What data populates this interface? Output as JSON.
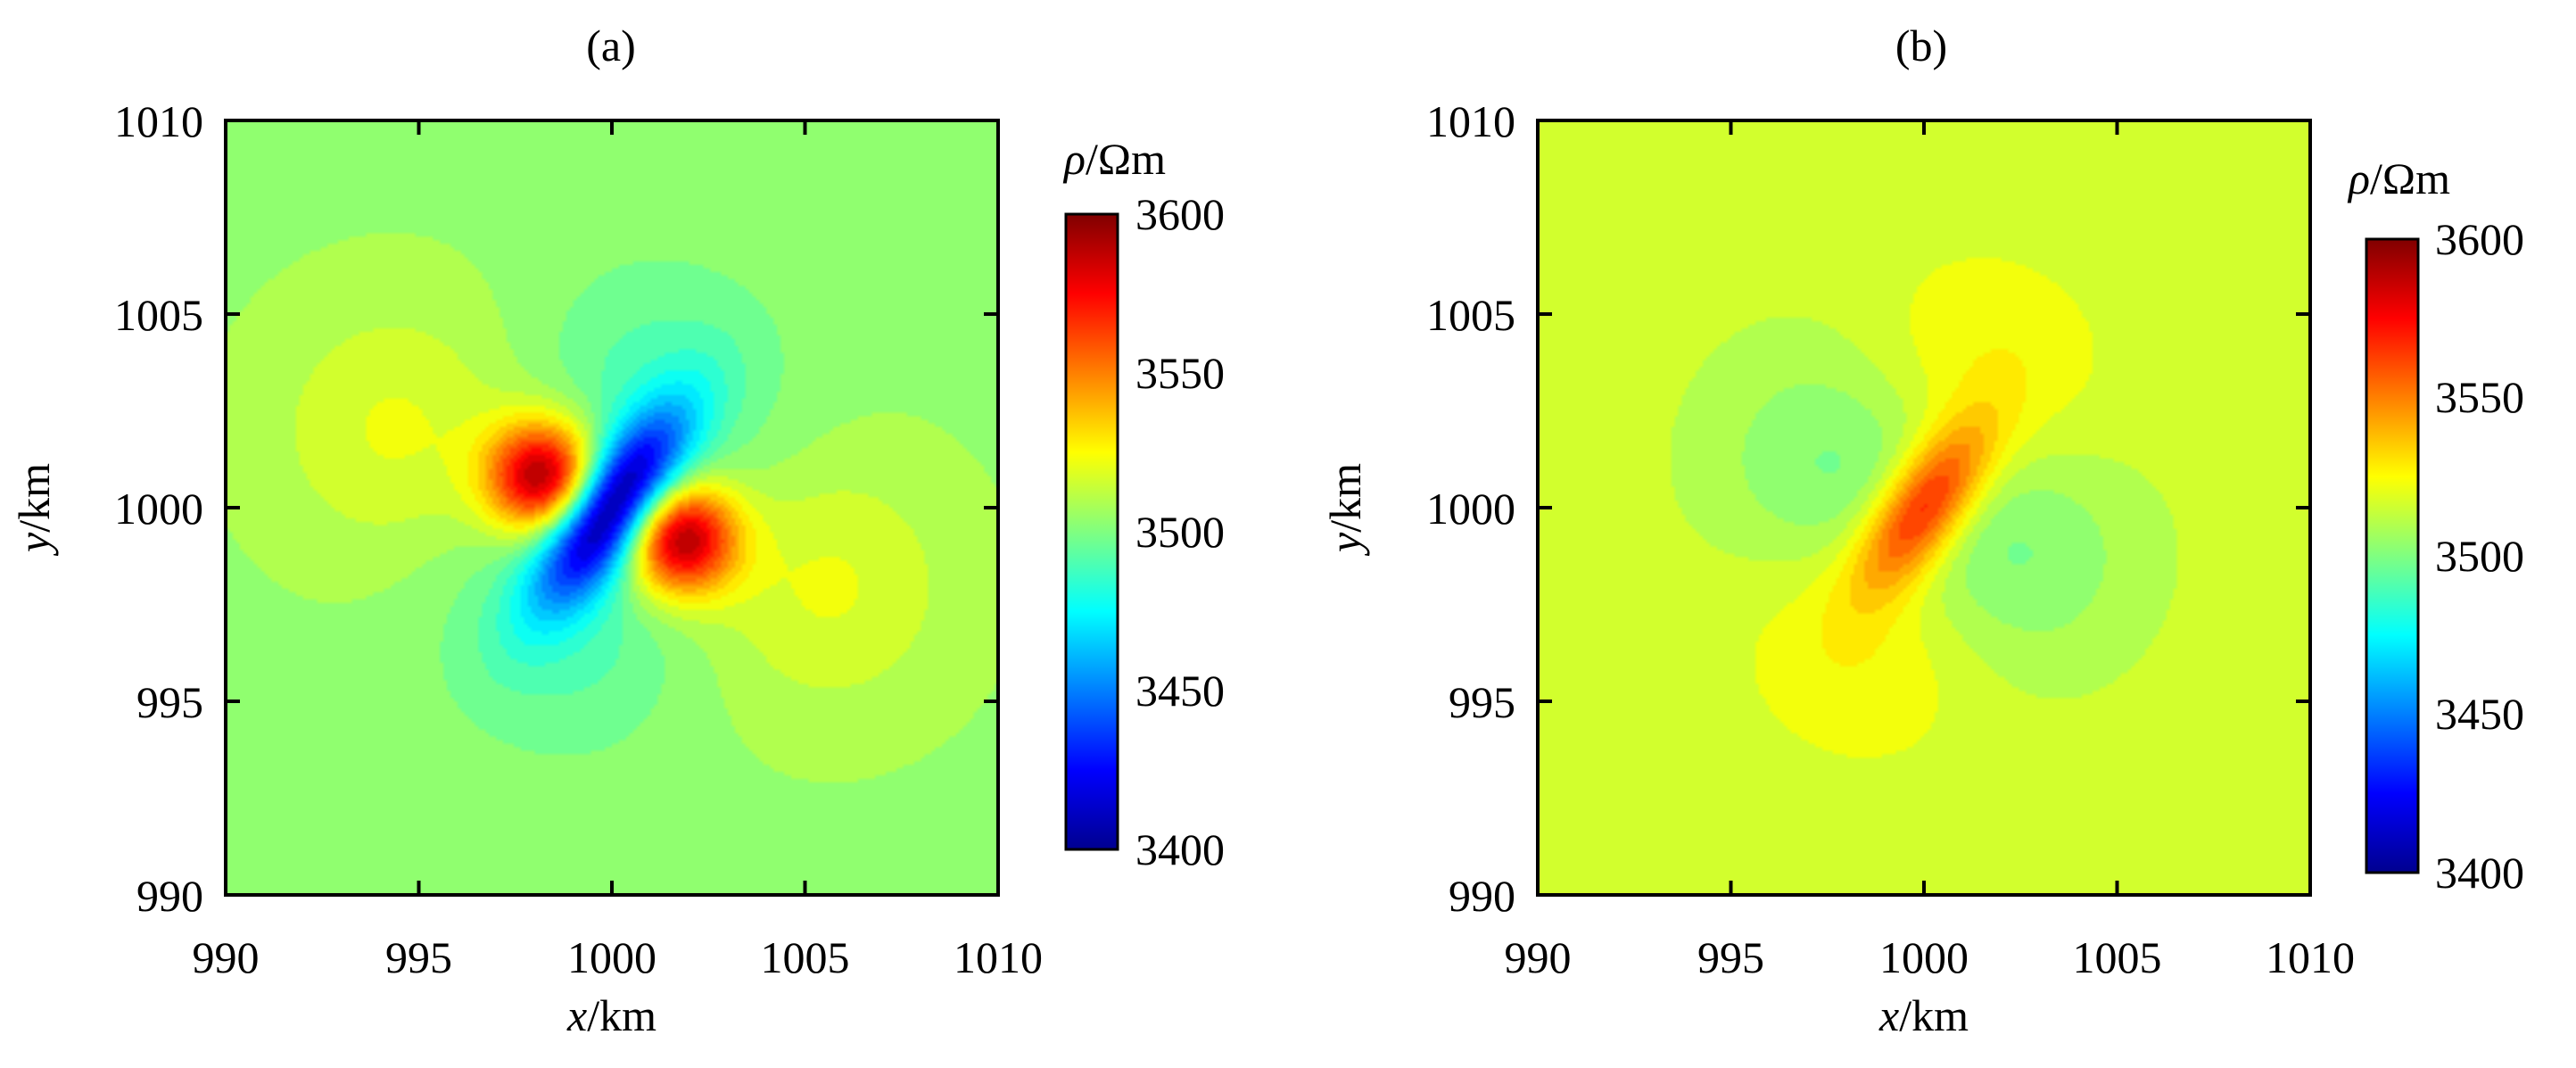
{
  "chart_data": [
    {
      "type": "heatmap",
      "panel_label": "(a)",
      "xlabel_var": "x",
      "xlabel_unit": "/km",
      "ylabel_var": "y",
      "ylabel_unit": "/km",
      "xlim": [
        990,
        1010
      ],
      "ylim": [
        990,
        1010
      ],
      "x_ticks": [
        "990",
        "995",
        "1000",
        "1005",
        "1010"
      ],
      "y_ticks": [
        "990",
        "995",
        "1000",
        "1005",
        "1010"
      ],
      "colorbar": {
        "title_var": "ρ",
        "title_unit": "/Ωm",
        "range": [
          3400,
          3600
        ],
        "ticks": [
          "3400",
          "3450",
          "3500",
          "3550",
          "3600"
        ],
        "colormap": "jet"
      },
      "background_value": 3505,
      "features": [
        {
          "kind": "elongated-anomaly",
          "center": [
            1000,
            1000
          ],
          "peak": 3400,
          "orientation_deg": 55,
          "length_km": 4.5
        },
        {
          "kind": "lobe",
          "center": [
            998.2,
            1000.8
          ],
          "peak": 3592
        },
        {
          "kind": "lobe",
          "center": [
            1001.8,
            999.2
          ],
          "peak": 3592
        },
        {
          "kind": "lobe",
          "center": [
            1001.2,
            1003.0
          ],
          "peak": 3490
        },
        {
          "kind": "lobe",
          "center": [
            998.8,
            997.0
          ],
          "peak": 3490
        },
        {
          "kind": "lobe",
          "center": [
            994.5,
            1002.0
          ],
          "peak": 3520
        },
        {
          "kind": "lobe",
          "center": [
            1005.5,
            998.0
          ],
          "peak": 3520
        }
      ]
    },
    {
      "type": "heatmap",
      "panel_label": "(b)",
      "xlabel_var": "x",
      "xlabel_unit": "/km",
      "ylabel_var": "y",
      "ylabel_unit": "/km",
      "xlim": [
        990,
        1010
      ],
      "ylim": [
        990,
        1010
      ],
      "x_ticks": [
        "990",
        "995",
        "1000",
        "1005",
        "1010"
      ],
      "y_ticks": [
        "990",
        "995",
        "1000",
        "1005",
        "1010"
      ],
      "colorbar": {
        "title_var": "ρ",
        "title_unit": "/Ωm",
        "range": [
          3400,
          3600
        ],
        "ticks": [
          "3400",
          "3450",
          "3500",
          "3550",
          "3600"
        ],
        "colormap": "jet"
      },
      "background_value": 3515,
      "features": [
        {
          "kind": "elongated-anomaly",
          "center": [
            1000,
            1000
          ],
          "peak": 3575,
          "orientation_deg": 55,
          "length_km": 4.0
        },
        {
          "kind": "lobe",
          "center": [
            1001.2,
            1002.8
          ],
          "peak": 3530
        },
        {
          "kind": "lobe",
          "center": [
            998.8,
            997.2
          ],
          "peak": 3530
        },
        {
          "kind": "lobe",
          "center": [
            998.0,
            1001.0
          ],
          "peak": 3495
        },
        {
          "kind": "lobe",
          "center": [
            1002.0,
            999.0
          ],
          "peak": 3495
        }
      ]
    }
  ]
}
